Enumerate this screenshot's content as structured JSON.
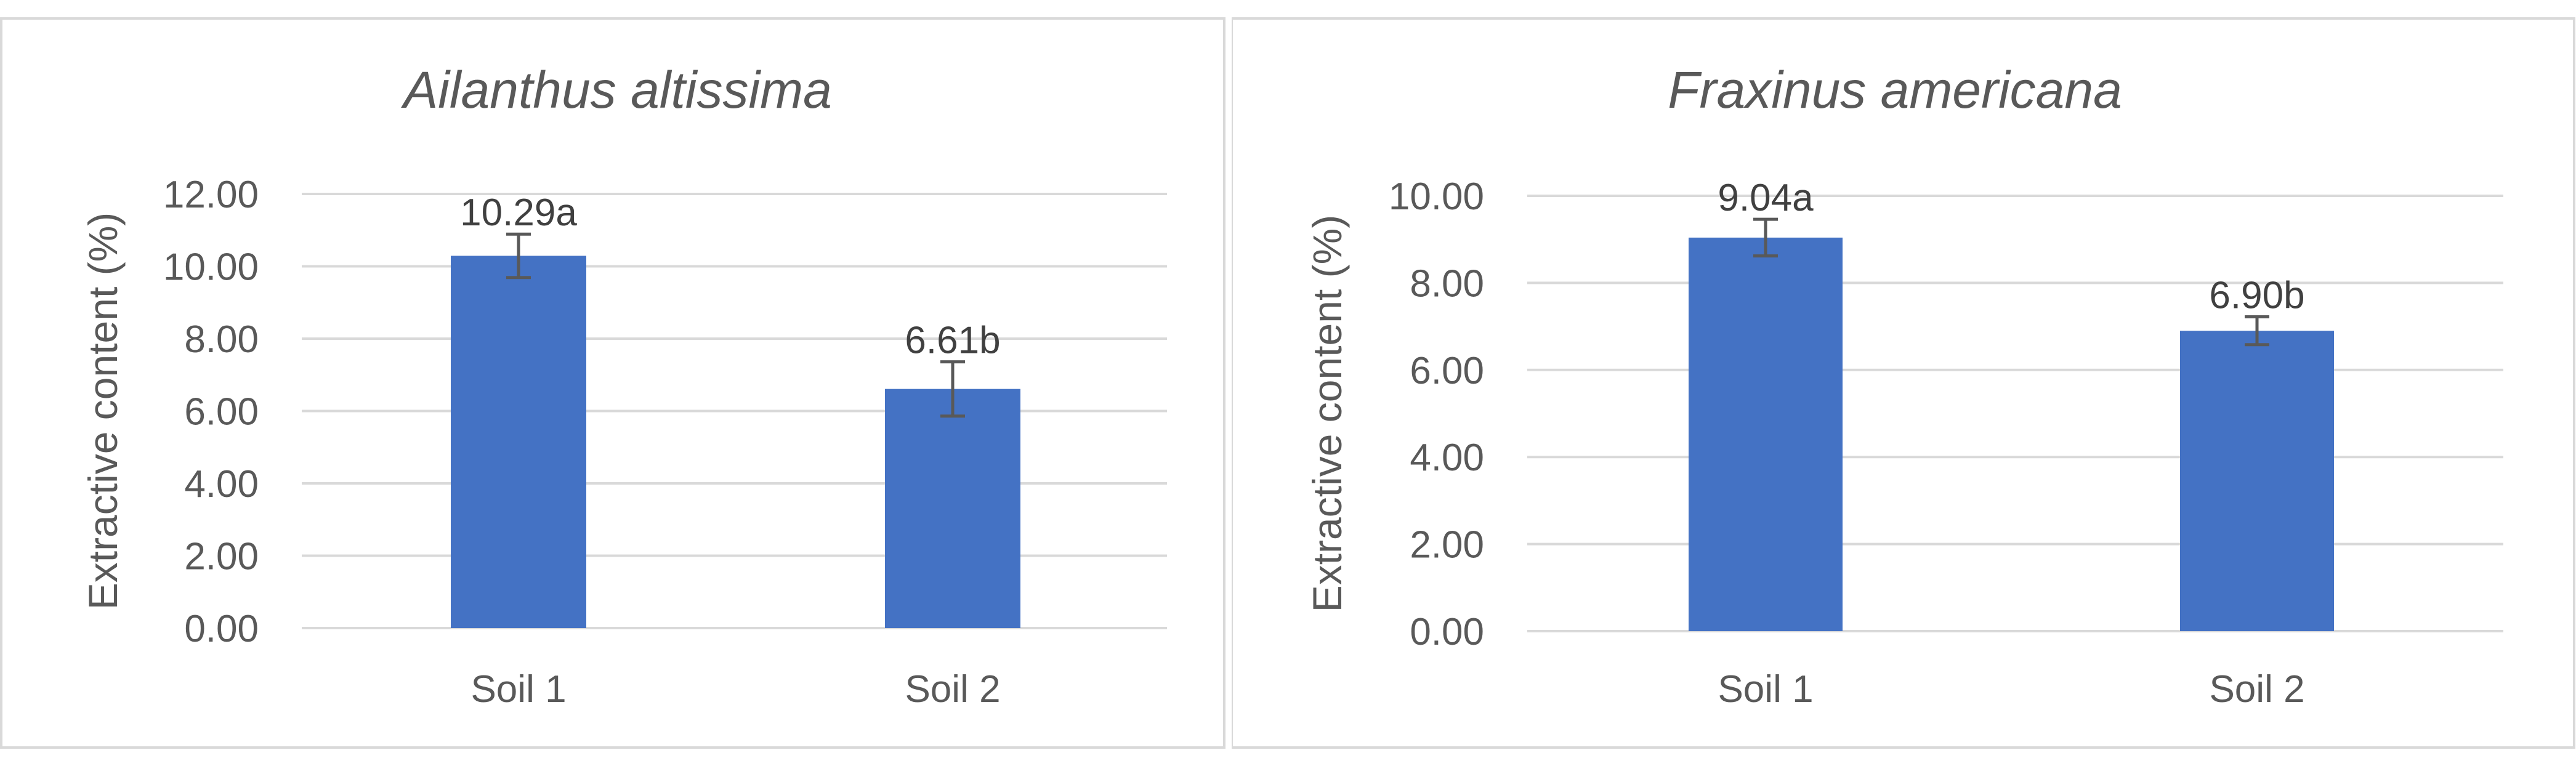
{
  "chart_data": [
    {
      "type": "bar",
      "title": "Ailanthus altissima",
      "xlabel": "",
      "ylabel": "Extractive content (%)",
      "categories": [
        "Soil 1",
        "Soil 2"
      ],
      "values": [
        10.29,
        6.61
      ],
      "error": [
        0.6,
        0.75
      ],
      "data_labels": [
        "10.29a",
        "6.61b"
      ],
      "yticks": [
        "0.00",
        "2.00",
        "4.00",
        "6.00",
        "8.00",
        "10.00",
        "12.00"
      ],
      "ylim": [
        0,
        12
      ],
      "grid": true,
      "legend": "none",
      "bar_color": "#4472C4",
      "error_color": "#595959"
    },
    {
      "type": "bar",
      "title": "Fraxinus americana",
      "xlabel": "",
      "ylabel": "Extractive content (%)",
      "categories": [
        "Soil 1",
        "Soil 2"
      ],
      "values": [
        9.04,
        6.9
      ],
      "error": [
        0.42,
        0.32
      ],
      "data_labels": [
        "9.04a",
        "6.90b"
      ],
      "yticks": [
        "0.00",
        "2.00",
        "4.00",
        "6.00",
        "8.00",
        "10.00"
      ],
      "ylim": [
        0,
        10
      ],
      "grid": true,
      "legend": "none",
      "bar_color": "#4472C4",
      "error_color": "#595959"
    }
  ]
}
